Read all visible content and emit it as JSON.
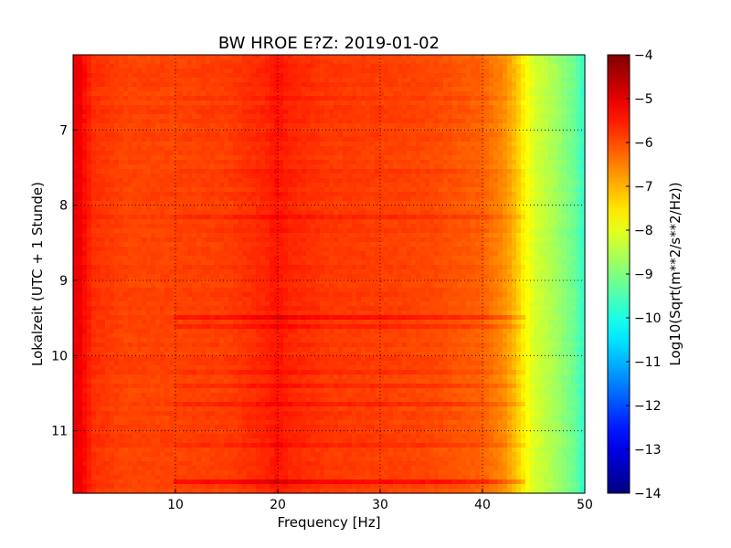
{
  "chart_data": {
    "type": "heatmap",
    "title": "BW HROE E?Z: 2019-01-02",
    "xlabel": "Frequency [Hz]",
    "ylabel": "Lokalzeit (UTC + 1 Stunde)",
    "xlim": [
      0,
      50
    ],
    "ylim": [
      11.83,
      6.0
    ],
    "x_ticks": [
      10,
      20,
      30,
      40,
      50
    ],
    "y_ticks": [
      7,
      8,
      9,
      10,
      11
    ],
    "grid": true,
    "colormap": "jet",
    "colorbar": {
      "label": "Log10(Sqrt(m**2/s**2/Hz))",
      "range": [
        -14,
        -4
      ],
      "ticks": [
        -4,
        -5,
        -6,
        -7,
        -8,
        -9,
        -10,
        -11,
        -12,
        -13,
        -14
      ]
    },
    "spectrum_profile": {
      "frequency_hz": [
        0,
        0.5,
        1,
        2,
        5,
        10,
        15,
        19,
        20,
        21,
        25,
        30,
        35,
        40,
        42,
        43,
        44,
        45,
        47,
        49,
        50
      ],
      "log_amplitude": [
        -5.2,
        -5.0,
        -5.3,
        -5.7,
        -5.9,
        -5.9,
        -5.85,
        -5.6,
        -5.4,
        -5.6,
        -5.8,
        -5.85,
        -5.95,
        -6.2,
        -6.6,
        -7.0,
        -7.6,
        -8.1,
        -8.6,
        -9.2,
        -9.8
      ]
    },
    "horizontal_bands": [
      {
        "hour": 6.55,
        "offset": 0.25
      },
      {
        "hour": 6.85,
        "offset": 0.12
      },
      {
        "hour": 7.55,
        "offset": 0.15
      },
      {
        "hour": 8.15,
        "offset": 0.22
      },
      {
        "hour": 8.35,
        "offset": 0.2
      },
      {
        "hour": 9.5,
        "offset": 0.55
      },
      {
        "hour": 9.62,
        "offset": 0.3
      },
      {
        "hour": 10.2,
        "offset": 0.25
      },
      {
        "hour": 10.4,
        "offset": 0.2
      },
      {
        "hour": 10.65,
        "offset": 0.25
      },
      {
        "hour": 10.85,
        "offset": 0.2
      },
      {
        "hour": 11.2,
        "offset": 0.2
      },
      {
        "hour": 11.68,
        "offset": 0.6
      }
    ]
  }
}
